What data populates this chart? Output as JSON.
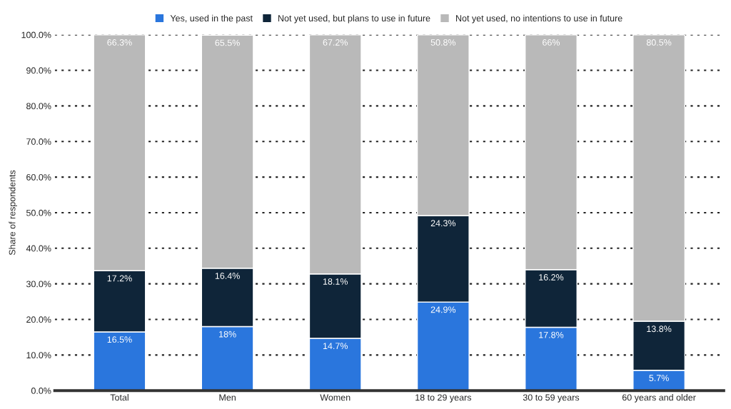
{
  "chart_data": {
    "type": "bar",
    "stacked": true,
    "ylabel": "Share of respondents",
    "categories": [
      "Total",
      "Men",
      "Women",
      "18 to 29 years",
      "30 to 59 years",
      "60 years and older"
    ],
    "series": [
      {
        "name": "Yes, used in the past",
        "color": "#2a76dd",
        "values": [
          16.5,
          18,
          14.7,
          24.9,
          17.8,
          5.7
        ],
        "value_labels": [
          "16.5%",
          "18%",
          "14.7%",
          "24.9%",
          "17.8%",
          "5.7%"
        ]
      },
      {
        "name": "Not yet used, but plans to use in future",
        "color": "#0f2539",
        "values": [
          17.2,
          16.4,
          18.1,
          24.3,
          16.2,
          13.8
        ],
        "value_labels": [
          "17.2%",
          "16.4%",
          "18.1%",
          "24.3%",
          "16.2%",
          "13.8%"
        ]
      },
      {
        "name": "Not yet used, no intentions to use in future",
        "color": "#b9b9b9",
        "values": [
          66.3,
          65.5,
          67.2,
          50.8,
          66,
          80.5
        ],
        "value_labels": [
          "66.3%",
          "65.5%",
          "67.2%",
          "50.8%",
          "66%",
          "80.5%"
        ]
      }
    ],
    "ylim": [
      0,
      100
    ],
    "yticks": [
      {
        "value": 0,
        "label": "0.0%"
      },
      {
        "value": 10,
        "label": "10.0%"
      },
      {
        "value": 20,
        "label": "20.0%"
      },
      {
        "value": 30,
        "label": "30.0%"
      },
      {
        "value": 40,
        "label": "40.0%"
      },
      {
        "value": 50,
        "label": "50.0%"
      },
      {
        "value": 60,
        "label": "60.0%"
      },
      {
        "value": 70,
        "label": "70.0%"
      },
      {
        "value": 80,
        "label": "80.0%"
      },
      {
        "value": 90,
        "label": "90.0%"
      },
      {
        "value": 100,
        "label": "100.0%"
      }
    ],
    "grid": "y",
    "line_style": "dotted",
    "legend": "top"
  }
}
